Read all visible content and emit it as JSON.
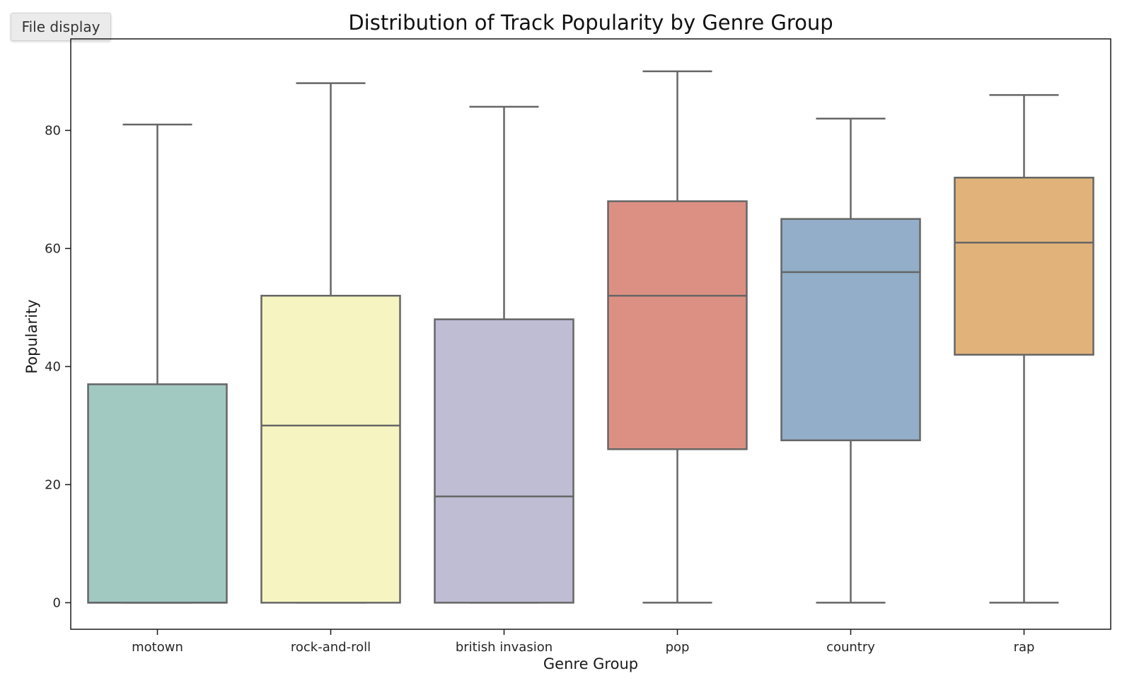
{
  "toolbar": {
    "file_display_label": "File display"
  },
  "chart_data": {
    "type": "box",
    "title": "Distribution of Track Popularity by Genre Group",
    "xlabel": "Genre Group",
    "ylabel": "Popularity",
    "ylim": [
      -4.5,
      95.5
    ],
    "yticks": [
      0,
      20,
      40,
      60,
      80
    ],
    "grid": false,
    "categories": [
      "motown",
      "rock-and-roll",
      "british invasion",
      "pop",
      "country",
      "rap"
    ],
    "boxes": [
      {
        "category": "motown",
        "min": 0,
        "q1": 0,
        "median": 0,
        "q3": 37,
        "max": 81,
        "color": "#a1c9c2"
      },
      {
        "category": "rock-and-roll",
        "min": 0,
        "q1": 0,
        "median": 30,
        "q3": 52,
        "max": 88,
        "color": "#f6f5c1"
      },
      {
        "category": "british invasion",
        "min": 0,
        "q1": 0,
        "median": 18,
        "q3": 48,
        "max": 84,
        "color": "#bebdd4"
      },
      {
        "category": "pop",
        "min": 0,
        "q1": 26,
        "median": 52,
        "q3": 68,
        "max": 90,
        "color": "#dc9084"
      },
      {
        "category": "country",
        "min": 0,
        "q1": 27.5,
        "median": 56,
        "q3": 65,
        "max": 82,
        "color": "#92aec8"
      },
      {
        "category": "rap",
        "min": 0,
        "q1": 42,
        "median": 61,
        "q3": 72,
        "max": 86,
        "color": "#e1b37b"
      }
    ],
    "line_color": "#666666"
  }
}
